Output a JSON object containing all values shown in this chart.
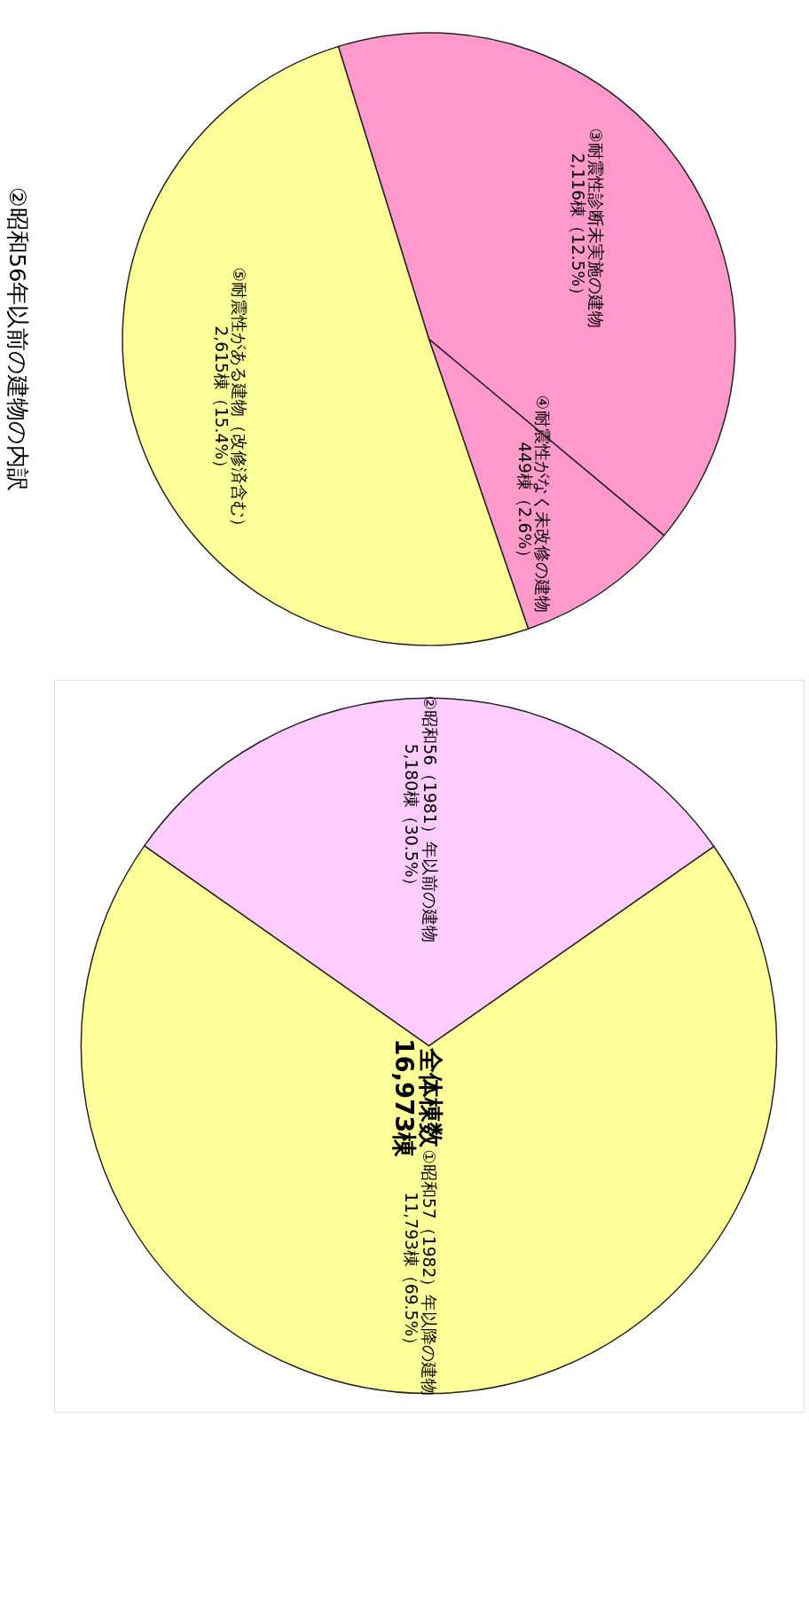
{
  "chart_data": [
    {
      "type": "pie",
      "title": "②昭和56年以前の建物の内訳",
      "categories": [
        "③耐震性診断未実施の建物",
        "④耐震性がなく未改修の建物",
        "⑤耐震性がある建物（改修済含む）"
      ],
      "values": [
        2116,
        449,
        2615
      ],
      "value_labels": [
        "2,116棟（12.5%）",
        "449棟（2.6%）",
        "2,615棟（15.4%）"
      ],
      "colors": [
        "#ff99cc",
        "#ff99cc",
        "#ffff99"
      ]
    },
    {
      "type": "pie",
      "categories": [
        "①昭和57（1982）年以降の建物",
        "②昭和56（1981）年以前の建物"
      ],
      "values": [
        11793,
        5180
      ],
      "value_labels": [
        "11,793棟（69.5%）",
        "5,180棟（30.5%）"
      ],
      "colors": [
        "#ffff99",
        "#ffccff"
      ],
      "annotations": [
        "全体棟数\n16,973棟"
      ]
    }
  ]
}
